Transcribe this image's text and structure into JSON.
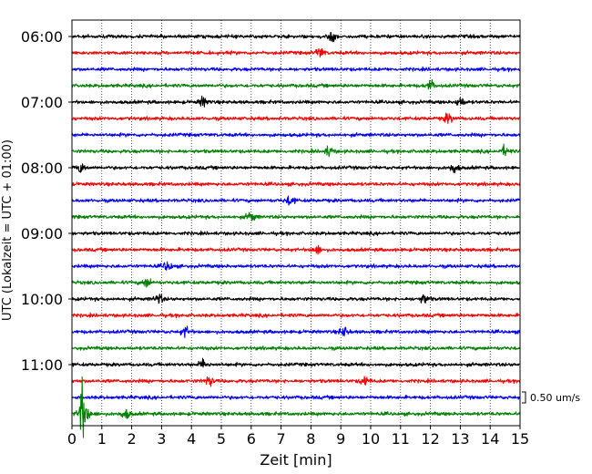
{
  "chart_data": {
    "type": "line",
    "title": "",
    "xlabel": "Zeit  [min]",
    "ylabel": "UTC (Lokalzeit = UTC + 01:00)",
    "xlim": [
      0,
      15
    ],
    "x_ticks": [
      "0",
      "1",
      "2",
      "3",
      "4",
      "5",
      "6",
      "7",
      "8",
      "9",
      "10",
      "11",
      "12",
      "13",
      "14",
      "15"
    ],
    "y_tick_labels": [
      "06:00",
      "07:00",
      "08:00",
      "09:00",
      "10:00",
      "11:00"
    ],
    "grid": "vertical dotted",
    "trace_minutes": 15,
    "traces_per_hour": 4,
    "start_time": "06:00",
    "end_time": "11:45",
    "color_cycle": [
      "#000000",
      "#ff0000",
      "#0000ff",
      "#008000"
    ],
    "scale_bar": {
      "label": "0.50 um/s",
      "value_um_s": 0.5
    },
    "series": [
      {
        "start": "06:00",
        "color": "#000000"
      },
      {
        "start": "06:15",
        "color": "#ff0000"
      },
      {
        "start": "06:30",
        "color": "#0000ff"
      },
      {
        "start": "06:45",
        "color": "#008000"
      },
      {
        "start": "07:00",
        "color": "#000000"
      },
      {
        "start": "07:15",
        "color": "#ff0000"
      },
      {
        "start": "07:30",
        "color": "#0000ff"
      },
      {
        "start": "07:45",
        "color": "#008000"
      },
      {
        "start": "08:00",
        "color": "#000000"
      },
      {
        "start": "08:15",
        "color": "#ff0000"
      },
      {
        "start": "08:30",
        "color": "#0000ff"
      },
      {
        "start": "08:45",
        "color": "#008000"
      },
      {
        "start": "09:00",
        "color": "#000000"
      },
      {
        "start": "09:15",
        "color": "#ff0000"
      },
      {
        "start": "09:30",
        "color": "#0000ff"
      },
      {
        "start": "09:45",
        "color": "#008000"
      },
      {
        "start": "10:00",
        "color": "#000000"
      },
      {
        "start": "10:15",
        "color": "#ff0000"
      },
      {
        "start": "10:30",
        "color": "#0000ff"
      },
      {
        "start": "10:45",
        "color": "#008000"
      },
      {
        "start": "11:00",
        "color": "#000000"
      },
      {
        "start": "11:15",
        "color": "#ff0000"
      },
      {
        "start": "11:30",
        "color": "#0000ff"
      },
      {
        "start": "11:45",
        "color": "#008000"
      }
    ],
    "bursts": [
      {
        "trace": "06:00",
        "minute": 8.7
      },
      {
        "trace": "06:15",
        "minute": 8.3
      },
      {
        "trace": "06:45",
        "minute": 12.0
      },
      {
        "trace": "07:00",
        "minute": 4.4
      },
      {
        "trace": "07:00",
        "minute": 13.0
      },
      {
        "trace": "07:15",
        "minute": 12.6
      },
      {
        "trace": "07:45",
        "minute": 8.6
      },
      {
        "trace": "07:45",
        "minute": 14.5
      },
      {
        "trace": "08:00",
        "minute": 0.3
      },
      {
        "trace": "08:00",
        "minute": 12.8
      },
      {
        "trace": "08:30",
        "minute": 7.3
      },
      {
        "trace": "08:45",
        "minute": 6.0
      },
      {
        "trace": "09:15",
        "minute": 8.2
      },
      {
        "trace": "09:30",
        "minute": 3.2
      },
      {
        "trace": "09:45",
        "minute": 2.5
      },
      {
        "trace": "10:00",
        "minute": 2.9
      },
      {
        "trace": "10:00",
        "minute": 11.8
      },
      {
        "trace": "10:30",
        "minute": 3.8
      },
      {
        "trace": "10:30",
        "minute": 9.1
      },
      {
        "trace": "11:00",
        "minute": 4.4
      },
      {
        "trace": "11:15",
        "minute": 4.6
      },
      {
        "trace": "11:15",
        "minute": 9.8
      },
      {
        "trace": "11:45",
        "minute": 0.3
      },
      {
        "trace": "11:45",
        "minute": 1.8
      }
    ]
  }
}
